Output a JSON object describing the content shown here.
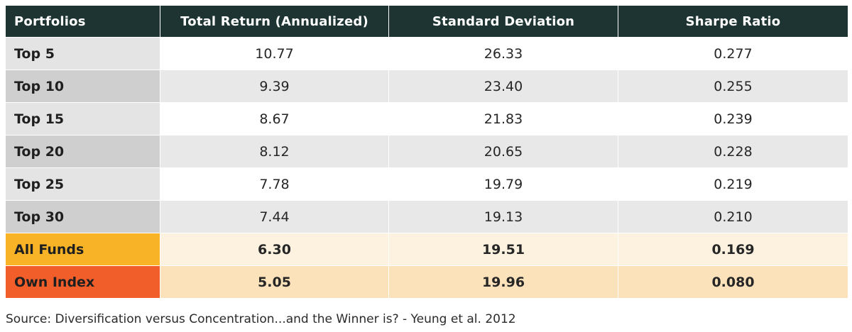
{
  "table": {
    "headers": [
      "Portfolios",
      "Total Return (Annualized)",
      "Standard Deviation",
      "Sharpe Ratio"
    ],
    "rows": [
      {
        "label": "Top 5",
        "values": [
          "10.77",
          "26.33",
          "0.277"
        ]
      },
      {
        "label": "Top 10",
        "values": [
          "9.39",
          "23.40",
          "0.255"
        ]
      },
      {
        "label": "Top 15",
        "values": [
          "8.67",
          "21.83",
          "0.239"
        ]
      },
      {
        "label": "Top 20",
        "values": [
          "8.12",
          "20.65",
          "0.228"
        ]
      },
      {
        "label": "Top 25",
        "values": [
          "7.78",
          "19.79",
          "0.219"
        ]
      },
      {
        "label": "Top 30",
        "values": [
          "7.44",
          "19.13",
          "0.210"
        ]
      },
      {
        "label": "All Funds",
        "values": [
          "6.30",
          "19.51",
          "0.169"
        ]
      },
      {
        "label": "Own Index",
        "values": [
          "5.05",
          "19.96",
          "0.080"
        ]
      }
    ]
  },
  "colors": {
    "header_bg": "#1d3433",
    "all_funds_accent": "#f8b426",
    "own_index_accent": "#f15e2a"
  },
  "source": "Source: Diversification versus Concentration...and the Winner is? - Yeung et al. 2012"
}
